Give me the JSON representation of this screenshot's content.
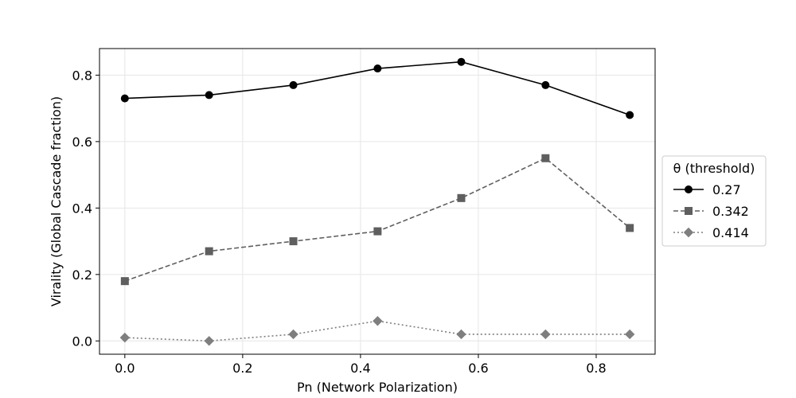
{
  "chart_data": {
    "type": "line",
    "title": "",
    "xlabel": "Pn (Network Polarization)",
    "ylabel": "Virality (Global Cascade fraction)",
    "x": [
      0.0,
      0.143,
      0.286,
      0.429,
      0.571,
      0.714,
      0.857
    ],
    "xlim": [
      -0.043,
      0.9
    ],
    "ylim": [
      -0.04,
      0.88
    ],
    "xticks": [
      0.0,
      0.2,
      0.4,
      0.6,
      0.8
    ],
    "xtick_labels": [
      "0.0",
      "0.2",
      "0.4",
      "0.6",
      "0.8"
    ],
    "yticks": [
      0.0,
      0.2,
      0.4,
      0.6,
      0.8
    ],
    "ytick_labels": [
      "0.0",
      "0.2",
      "0.4",
      "0.6",
      "0.8"
    ],
    "grid": true,
    "legend": {
      "title": "θ (threshold)",
      "placement": "right"
    },
    "series": [
      {
        "name": "0.27",
        "values": [
          0.73,
          0.74,
          0.77,
          0.82,
          0.84,
          0.77,
          0.68
        ],
        "color": "#000000",
        "marker": "circle",
        "dash": "solid"
      },
      {
        "name": "0.342",
        "values": [
          0.18,
          0.27,
          0.3,
          0.33,
          0.43,
          0.55,
          0.34
        ],
        "color": "#5f5f5f",
        "marker": "square",
        "dash": "dashed"
      },
      {
        "name": "0.414",
        "values": [
          0.01,
          0.0,
          0.02,
          0.06,
          0.02,
          0.02,
          0.02
        ],
        "color": "#7f7f7f",
        "marker": "diamond",
        "dash": "dotted"
      }
    ]
  }
}
